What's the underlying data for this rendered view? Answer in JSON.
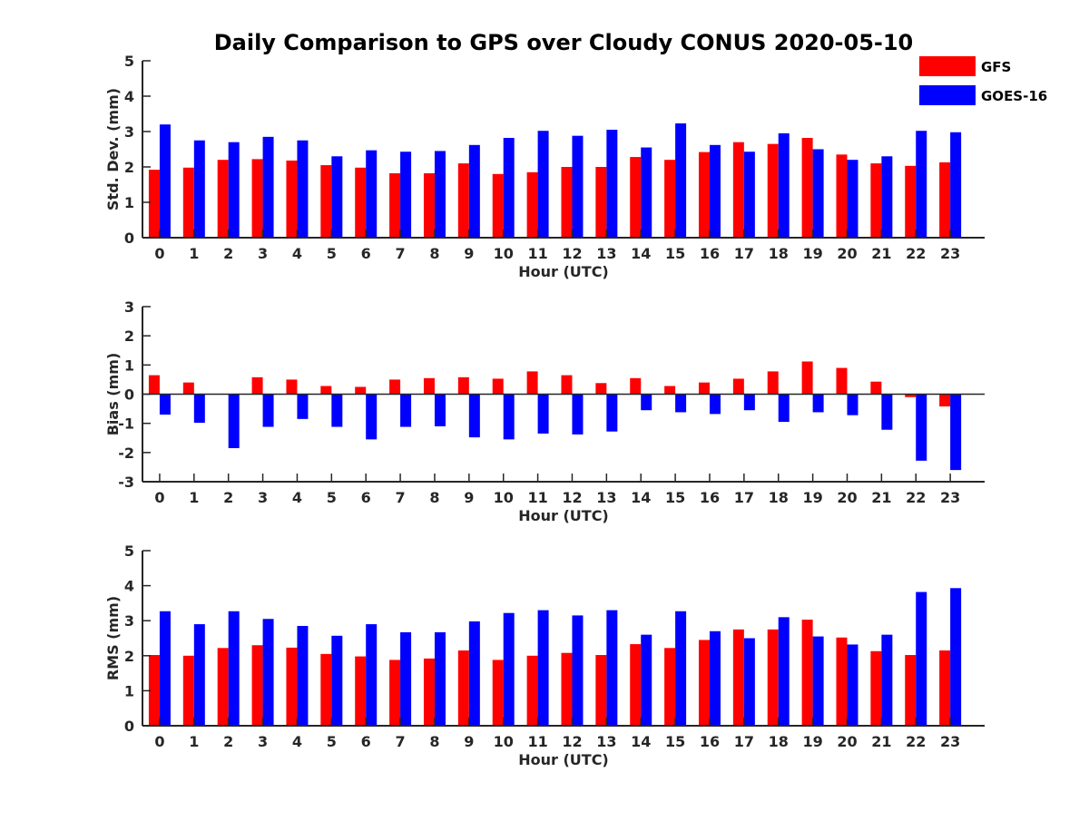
{
  "figure": {
    "title": "Daily Comparison to GPS over Cloudy CONUS 2020-05-10"
  },
  "legend": {
    "placement": "top-right",
    "entries": [
      {
        "name": "GFS",
        "color": "#ff0000"
      },
      {
        "name": "GOES-16",
        "color": "#0000ff"
      }
    ]
  },
  "chart_data": [
    {
      "type": "bar",
      "ylabel": "Std. Dev. (mm)",
      "xlabel": "Hour (UTC)",
      "ylim": [
        0,
        5
      ],
      "yticks": [
        0,
        1,
        2,
        3,
        4,
        5
      ],
      "categories": [
        "0",
        "1",
        "2",
        "3",
        "4",
        "5",
        "6",
        "7",
        "8",
        "9",
        "10",
        "11",
        "12",
        "13",
        "14",
        "15",
        "16",
        "17",
        "18",
        "19",
        "20",
        "21",
        "22",
        "23"
      ],
      "series": [
        {
          "name": "GFS",
          "color": "#ff0000",
          "values": [
            1.92,
            1.98,
            2.2,
            2.22,
            2.18,
            2.05,
            1.98,
            1.82,
            1.82,
            2.1,
            1.8,
            1.85,
            2.0,
            2.0,
            2.28,
            2.2,
            2.42,
            2.7,
            2.65,
            2.82,
            2.35,
            2.1,
            2.03,
            2.13
          ]
        },
        {
          "name": "GOES-16",
          "color": "#0000ff",
          "values": [
            3.2,
            2.75,
            2.7,
            2.85,
            2.75,
            2.3,
            2.47,
            2.43,
            2.45,
            2.62,
            2.82,
            3.02,
            2.88,
            3.05,
            2.55,
            3.23,
            2.62,
            2.43,
            2.95,
            2.5,
            2.2,
            2.3,
            3.02,
            2.98
          ]
        }
      ]
    },
    {
      "type": "bar",
      "ylabel": "Bias (mm)",
      "xlabel": "Hour (UTC)",
      "ylim": [
        -3,
        3
      ],
      "yticks": [
        -3,
        -2,
        -1,
        0,
        1,
        2,
        3
      ],
      "categories": [
        "0",
        "1",
        "2",
        "3",
        "4",
        "5",
        "6",
        "7",
        "8",
        "9",
        "10",
        "11",
        "12",
        "13",
        "14",
        "15",
        "16",
        "17",
        "18",
        "19",
        "20",
        "21",
        "22",
        "23"
      ],
      "series": [
        {
          "name": "GFS",
          "color": "#ff0000",
          "values": [
            0.65,
            0.4,
            0.0,
            0.58,
            0.5,
            0.28,
            0.25,
            0.5,
            0.55,
            0.58,
            0.53,
            0.78,
            0.65,
            0.38,
            0.55,
            0.28,
            0.4,
            0.53,
            0.78,
            1.12,
            0.9,
            0.43,
            -0.1,
            -0.42
          ]
        },
        {
          "name": "GOES-16",
          "color": "#0000ff",
          "values": [
            -0.7,
            -0.98,
            -1.85,
            -1.12,
            -0.85,
            -1.12,
            -1.55,
            -1.12,
            -1.1,
            -1.48,
            -1.55,
            -1.35,
            -1.38,
            -1.28,
            -0.55,
            -0.62,
            -0.68,
            -0.55,
            -0.95,
            -0.62,
            -0.72,
            -1.22,
            -2.28,
            -2.6
          ]
        }
      ]
    },
    {
      "type": "bar",
      "ylabel": "RMS (mm)",
      "xlabel": "Hour (UTC)",
      "ylim": [
        0,
        5
      ],
      "yticks": [
        0,
        1,
        2,
        3,
        4,
        5
      ],
      "categories": [
        "0",
        "1",
        "2",
        "3",
        "4",
        "5",
        "6",
        "7",
        "8",
        "9",
        "10",
        "11",
        "12",
        "13",
        "14",
        "15",
        "16",
        "17",
        "18",
        "19",
        "20",
        "21",
        "22",
        "23"
      ],
      "series": [
        {
          "name": "GFS",
          "color": "#ff0000",
          "values": [
            2.02,
            2.0,
            2.22,
            2.3,
            2.23,
            2.05,
            1.98,
            1.88,
            1.92,
            2.15,
            1.88,
            2.0,
            2.08,
            2.02,
            2.33,
            2.22,
            2.45,
            2.75,
            2.75,
            3.03,
            2.52,
            2.13,
            2.02,
            2.15
          ]
        },
        {
          "name": "GOES-16",
          "color": "#0000ff",
          "values": [
            3.27,
            2.9,
            3.27,
            3.05,
            2.85,
            2.57,
            2.9,
            2.67,
            2.67,
            2.98,
            3.22,
            3.3,
            3.15,
            3.3,
            2.6,
            3.27,
            2.7,
            2.5,
            3.1,
            2.55,
            2.32,
            2.6,
            3.82,
            3.93
          ]
        }
      ]
    }
  ]
}
